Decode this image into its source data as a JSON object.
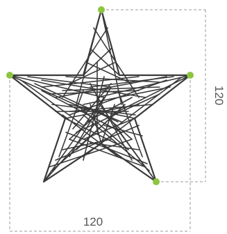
{
  "dimensions": {
    "width_label": "120",
    "height_label": "120"
  },
  "colors": {
    "star_stroke": "#3a3a3a",
    "anchor_point": "#8cc63f",
    "dimension_line": "#9a9a9a",
    "label_text": "#555555"
  },
  "anchor_points": 4
}
